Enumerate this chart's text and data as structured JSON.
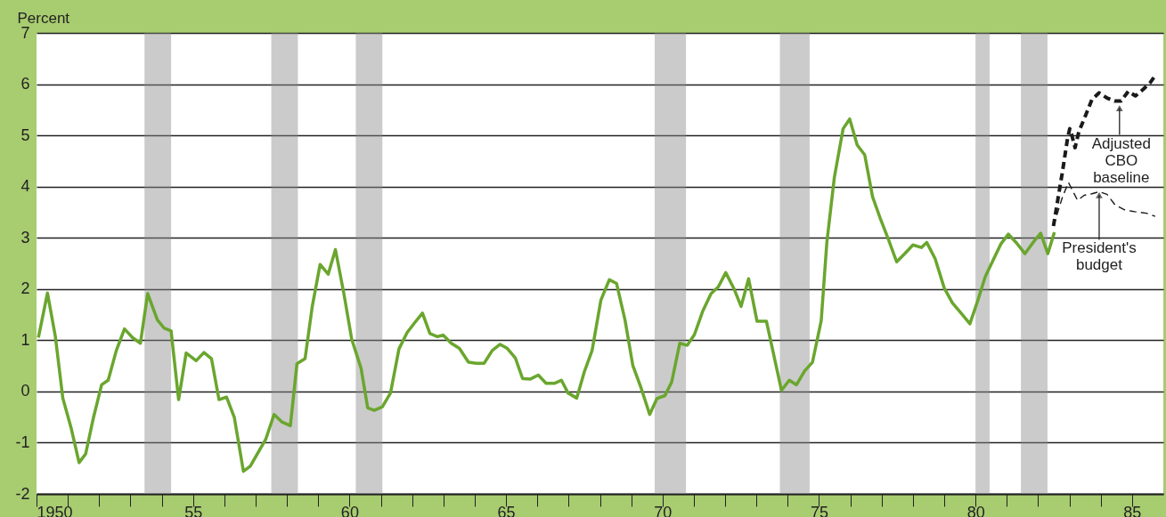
{
  "chart_data": {
    "type": "line",
    "ylabel": "Percent",
    "xlim": [
      1950,
      1986
    ],
    "ylim": [
      -2,
      7
    ],
    "yticks": [
      -2,
      -1,
      0,
      1,
      2,
      3,
      4,
      5,
      6,
      7
    ],
    "xticks": [
      1950,
      {
        "value": 1955,
        "label": "55"
      },
      {
        "value": 1960,
        "label": "60"
      },
      {
        "value": 1965,
        "label": "65"
      },
      {
        "value": 1970,
        "label": "70"
      },
      {
        "value": 1975,
        "label": "75"
      },
      {
        "value": 1980,
        "label": "80"
      },
      {
        "value": 1985,
        "label": "85"
      },
      {
        "value": 1951,
        "label": null
      },
      {
        "value": 1952,
        "label": null
      },
      {
        "value": 1953,
        "label": null
      },
      {
        "value": 1954,
        "label": null
      },
      {
        "value": 1956,
        "label": null
      },
      {
        "value": 1957,
        "label": null
      },
      {
        "value": 1958,
        "label": null
      },
      {
        "value": 1959,
        "label": null
      },
      {
        "value": 1961,
        "label": null
      },
      {
        "value": 1962,
        "label": null
      },
      {
        "value": 1963,
        "label": null
      },
      {
        "value": 1964,
        "label": null
      },
      {
        "value": 1966,
        "label": null
      },
      {
        "value": 1967,
        "label": null
      },
      {
        "value": 1968,
        "label": null
      },
      {
        "value": 1969,
        "label": null
      },
      {
        "value": 1971,
        "label": null
      },
      {
        "value": 1972,
        "label": null
      },
      {
        "value": 1973,
        "label": null
      },
      {
        "value": 1974,
        "label": null
      },
      {
        "value": 1976,
        "label": null
      },
      {
        "value": 1977,
        "label": null
      },
      {
        "value": 1978,
        "label": null
      },
      {
        "value": 1979,
        "label": null
      },
      {
        "value": 1981,
        "label": null
      },
      {
        "value": 1982,
        "label": null
      },
      {
        "value": 1983,
        "label": null
      },
      {
        "value": 1984,
        "label": null
      }
    ],
    "grid": "y",
    "annotations": [
      {
        "text": "Adjusted CBO baseline",
        "x": 1984.6,
        "y": 5.6
      },
      {
        "text": "President's budget",
        "x": 1983.95,
        "y": 3.9
      }
    ],
    "series": [
      {
        "color": "#6aa62e",
        "line_style": "solid",
        "x": [
          1950.06,
          1950.35,
          1950.6,
          1950.84,
          1951.1,
          1951.36,
          1951.57,
          1951.82,
          1952.08,
          1952.29,
          1952.55,
          1952.81,
          1953.07,
          1953.32,
          1953.55,
          1953.86,
          1954.07,
          1954.3,
          1954.54,
          1954.78,
          1955.1,
          1955.35,
          1955.59,
          1955.83,
          1956.07,
          1956.32,
          1956.61,
          1956.83,
          1957.09,
          1957.32,
          1957.59,
          1957.85,
          1958.11,
          1958.32,
          1958.58,
          1958.81,
          1959.06,
          1959.32,
          1959.55,
          1959.82,
          1960.07,
          1960.37,
          1960.58,
          1960.79,
          1961.05,
          1961.31,
          1961.58,
          1961.84,
          1962.08,
          1962.33,
          1962.57,
          1962.81,
          1962.99,
          1963.25,
          1963.51,
          1963.8,
          1964.04,
          1964.3,
          1964.56,
          1964.81,
          1965.04,
          1965.3,
          1965.53,
          1965.77,
          1966.03,
          1966.28,
          1966.56,
          1966.77,
          1966.98,
          1967.26,
          1967.5,
          1967.75,
          1968.03,
          1968.3,
          1968.53,
          1968.8,
          1969.05,
          1969.32,
          1969.59,
          1969.82,
          1970.08,
          1970.29,
          1970.55,
          1970.79,
          1971.02,
          1971.28,
          1971.55,
          1971.78,
          1972.02,
          1972.28,
          1972.51,
          1972.75,
          1973.02,
          1973.32,
          1973.8,
          1974.05,
          1974.28,
          1974.54,
          1974.79,
          1975.07,
          1975.25,
          1975.49,
          1975.77,
          1975.98,
          1976.22,
          1976.46,
          1976.71,
          1976.95,
          1977.21,
          1977.48,
          1977.74,
          1978.0,
          1978.27,
          1978.44,
          1978.71,
          1979.0,
          1979.26,
          1979.55,
          1979.82,
          1980.07,
          1980.31,
          1980.56,
          1980.81,
          1981.05,
          1981.31,
          1981.58,
          1981.84,
          1982.08,
          1982.31,
          1982.52
        ],
        "values": [
          1.05,
          1.92,
          1.08,
          -0.13,
          -0.7,
          -1.39,
          -1.22,
          -0.51,
          0.13,
          0.22,
          0.8,
          1.22,
          1.05,
          0.94,
          1.91,
          1.4,
          1.24,
          1.18,
          -0.16,
          0.75,
          0.6,
          0.76,
          0.64,
          -0.16,
          -0.11,
          -0.51,
          -1.56,
          -1.46,
          -1.18,
          -0.94,
          -0.45,
          -0.6,
          -0.67,
          0.54,
          0.64,
          1.66,
          2.48,
          2.29,
          2.77,
          1.91,
          1.02,
          0.45,
          -0.32,
          -0.37,
          -0.3,
          -0.03,
          0.83,
          1.15,
          1.34,
          1.53,
          1.13,
          1.07,
          1.1,
          0.94,
          0.84,
          0.57,
          0.55,
          0.55,
          0.8,
          0.92,
          0.84,
          0.65,
          0.25,
          0.24,
          0.32,
          0.16,
          0.16,
          0.22,
          -0.03,
          -0.13,
          0.38,
          0.8,
          1.78,
          2.18,
          2.11,
          1.4,
          0.51,
          0.06,
          -0.45,
          -0.14,
          -0.08,
          0.18,
          0.94,
          0.9,
          1.11,
          1.56,
          1.91,
          2.04,
          2.32,
          2.01,
          1.66,
          2.2,
          1.37,
          1.37,
          0.02,
          0.22,
          0.13,
          0.4,
          0.57,
          1.38,
          2.91,
          4.18,
          5.13,
          5.32,
          4.81,
          4.62,
          3.8,
          3.39,
          2.98,
          2.53,
          2.69,
          2.86,
          2.81,
          2.91,
          2.59,
          2.02,
          1.73,
          1.52,
          1.32,
          1.77,
          2.24,
          2.56,
          2.88,
          3.07,
          2.9,
          2.69,
          2.91,
          3.09,
          2.69,
          3.11
        ]
      },
      {
        "color": "#1a1a1a",
        "line_style": "dashed",
        "x": [
          1982.49,
          1982.78,
          1982.94,
          1983.01,
          1983.07,
          1983.18,
          1983.3,
          1983.51,
          1983.72,
          1983.95,
          1984.2,
          1984.44,
          1984.65,
          1984.88,
          1985.11,
          1985.36,
          1985.57,
          1985.78
        ],
        "values": [
          3.23,
          4.3,
          4.94,
          5.13,
          5.02,
          4.76,
          5.07,
          5.38,
          5.7,
          5.83,
          5.73,
          5.67,
          5.67,
          5.86,
          5.77,
          5.9,
          6.02,
          6.2
        ]
      },
      {
        "color": "#1a1a1a",
        "line_style": "dashed",
        "x": [
          1982.49,
          1982.78,
          1982.97,
          1983.26,
          1983.47,
          1983.72,
          1983.95,
          1984.2,
          1984.46,
          1984.78,
          1985.09,
          1985.46,
          1985.74
        ],
        "values": [
          3.23,
          3.8,
          4.08,
          3.73,
          3.83,
          3.86,
          3.9,
          3.85,
          3.64,
          3.54,
          3.51,
          3.48,
          3.42
        ]
      }
    ],
    "bands": [
      {
        "axis": "x",
        "from": 1953.45,
        "to": 1954.3,
        "color": "#8c8c8c"
      },
      {
        "axis": "x",
        "from": 1957.5,
        "to": 1958.35,
        "color": "#8c8c8c"
      },
      {
        "axis": "x",
        "from": 1960.2,
        "to": 1961.05,
        "color": "#8c8c8c"
      },
      {
        "axis": "x",
        "from": 1969.75,
        "to": 1970.75,
        "color": "#8c8c8c"
      },
      {
        "axis": "x",
        "from": 1973.75,
        "to": 1974.7,
        "color": "#8c8c8c"
      },
      {
        "axis": "x",
        "from": 1980.0,
        "to": 1980.45,
        "color": "#8c8c8c"
      },
      {
        "axis": "x",
        "from": 1981.45,
        "to": 1982.3,
        "color": "#8c8c8c"
      }
    ]
  }
}
